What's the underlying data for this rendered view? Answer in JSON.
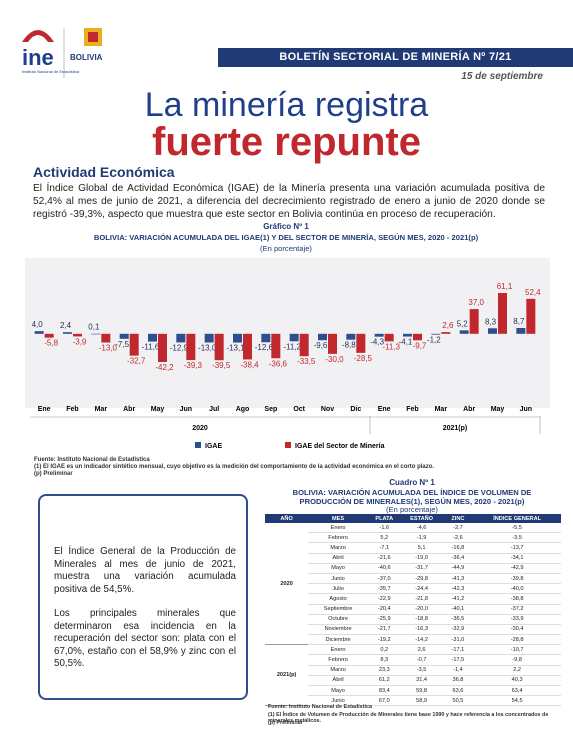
{
  "header": {
    "logo": "ine",
    "logo_caption": "Instituto Nacional de Estadística",
    "state_logo": "BOLIVIA",
    "bulletin": "BOLETÍN SECTORIAL DE MINERÍA Nº 7/21",
    "date": "15 de septiembre",
    "headline_1": "La minería registra",
    "headline_2": "fuerte repunte"
  },
  "section": "Actividad Económica",
  "intro": "El Índice Global de Actividad Económica (IGAE) de la Minería presenta una variación acumulada positiva de 52,4% al mes de junio de 2021, a diferencia del decrecimiento registrado de enero a junio de 2020 donde se registró -39,3%, aspecto que muestra que este sector en Bolivia continúa en proceso de recuperación.",
  "chart_data": {
    "type": "bar",
    "label": "Gráfico Nº 1",
    "title": "BOLIVIA: VARIACIÓN ACUMULADA DEL IGAE(1) Y DEL SECTOR DE MINERÍA, SEGÚN MES, 2020 - 2021(p)",
    "subtitle": "(En porcentaje)",
    "periods": [
      {
        "name": "2020",
        "categories": [
          "Ene",
          "Feb",
          "Mar",
          "Abr",
          "May",
          "Jun",
          "Jul",
          "Ago",
          "Sep",
          "Oct",
          "Nov",
          "Dic"
        ]
      },
      {
        "name": "2021(p)",
        "categories": [
          "Ene",
          "Feb",
          "Mar",
          "Abr",
          "May",
          "Jun"
        ]
      }
    ],
    "series": [
      {
        "name": "IGAE",
        "color": "#2e4f8f",
        "values": [
          4.0,
          2.4,
          0.1,
          -7.5,
          -11.6,
          -12.9,
          -13.0,
          -13.1,
          -12.6,
          -11.2,
          -9.6,
          -8.8,
          -4.3,
          -4.1,
          -1.2,
          5.2,
          8.3,
          8.7
        ],
        "value_labels": [
          "4,0",
          "2,4",
          "0,1",
          "-7,5",
          "-11,6",
          "-12,9",
          "-13,0",
          "-13,1",
          "-12,6",
          "-11,2",
          "-9,6",
          "-8,8",
          "-4,3",
          "-4,1",
          "-1,2",
          "5,2",
          "8,3",
          "8,7"
        ]
      },
      {
        "name": "IGAE del Sector de Minería",
        "color": "#c0282d",
        "values": [
          -5.8,
          -3.9,
          -13.0,
          -32.7,
          -42.2,
          -39.3,
          -39.5,
          -38.4,
          -36.6,
          -33.5,
          -30.0,
          -28.5,
          -11.3,
          -9.7,
          2.6,
          37.0,
          61.1,
          52.4
        ],
        "value_labels": [
          "-5,8",
          "-3,9",
          "-13,0",
          "-32,7",
          "-42,2",
          "-39,3",
          "-39,5",
          "-38,4",
          "-36,6",
          "-33,5",
          "-30,0",
          "-28,5",
          "-11,3",
          "-9,7",
          "2,6",
          "37,0",
          "61,1",
          "52,4"
        ]
      }
    ],
    "notes": [
      "Fuente: Instituto Nacional de Estadística",
      "(1) El IGAE es un indicador sintético mensual, cuyo objetivo es la medición del comportamiento de la actividad económica en el corto plazo.",
      "(p) Preliminar"
    ]
  },
  "box": [
    "El Índice General de la Producción de Minerales al mes de junio de 2021, muestra una variación acumulada positiva de 54,5%.",
    "Los principales minerales que determinaron esa incidencia en la recuperación del sector son: plata con el 67,0%, estaño con el 58,9% y zinc con el 50,5%."
  ],
  "table": {
    "label": "Cuadro Nº 1",
    "title": "BOLIVIA: VARIACIÓN ACUMULADA DEL ÍNDICE DE VOLUMEN DE PRODUCCIÓN DE MINERALES(1), SEGÚN MES, 2020 - 2021(p)",
    "subtitle": "(En porcentaje)",
    "columns": [
      "AÑO",
      "MES",
      "PLATA",
      "ESTAÑO",
      "ZINC",
      "ÍNDICE GENERAL"
    ],
    "groups": [
      {
        "year": "2020",
        "rows": [
          [
            "Enero",
            "-1,6",
            "-4,6",
            "-2,7",
            "-5,5"
          ],
          [
            "Febrero",
            "5,2",
            "-1,9",
            "-2,6",
            "-3,5"
          ],
          [
            "Marzo",
            "-7,1",
            "5,1",
            "-16,8",
            "-13,7"
          ],
          [
            "Abril",
            "-21,6",
            "-19,0",
            "-36,4",
            "-34,1"
          ],
          [
            "Mayo",
            "-40,6",
            "-31,7",
            "-44,9",
            "-42,9"
          ],
          [
            "Junio",
            "-37,0",
            "-29,8",
            "-41,3",
            "-39,8"
          ],
          [
            "Julio",
            "-35,7",
            "-24,4",
            "-42,3",
            "-40,0"
          ],
          [
            "Agosto",
            "-22,9",
            "-21,8",
            "-41,2",
            "-38,8"
          ],
          [
            "Septiembre",
            "-20,4",
            "-20,0",
            "-40,1",
            "-37,2"
          ],
          [
            "Octubre",
            "-25,9",
            "-18,8",
            "-36,5",
            "-33,9"
          ],
          [
            "Noviembre",
            "-21,7",
            "-16,3",
            "-32,9",
            "-30,4"
          ],
          [
            "Diciembre",
            "-19,2",
            "-14,2",
            "-31,0",
            "-28,8"
          ]
        ]
      },
      {
        "year": "2021(p)",
        "rows": [
          [
            "Enero",
            "0,2",
            "2,6",
            "-17,1",
            "-10,7"
          ],
          [
            "Febrero",
            "8,3",
            "-0,7",
            "-17,5",
            "-9,8"
          ],
          [
            "Marzo",
            "23,3",
            "-3,5",
            "-1,4",
            "2,2"
          ],
          [
            "Abril",
            "61,2",
            "31,4",
            "36,8",
            "40,3"
          ],
          [
            "Mayo",
            "83,4",
            "59,8",
            "63,6",
            "63,4"
          ],
          [
            "Junio",
            "67,0",
            "58,9",
            "50,5",
            "54,5"
          ]
        ]
      }
    ],
    "notes": [
      "Fuente: Instituto Nacional de Estadística",
      "(1) El Índice de Volumen de Producción de Minerales tiene base 1990 y hace referencia a los concentrados de minerales metálicos.",
      "(p) Preliminar"
    ]
  }
}
